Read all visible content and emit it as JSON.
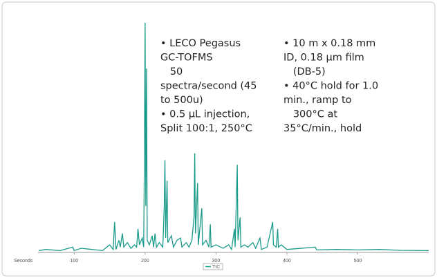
{
  "chart_data": {
    "type": "line",
    "xlabel": "Seconds",
    "xlim": [
      49,
      600
    ],
    "xticks": [
      100,
      200,
      300,
      400,
      500
    ],
    "ylim": [
      0,
      100
    ],
    "legend": "bottom",
    "x": [
      50,
      60,
      80,
      98,
      100,
      110,
      140,
      150,
      155,
      157,
      159,
      163,
      165,
      168,
      170,
      175,
      180,
      185,
      188,
      190,
      192,
      196,
      198,
      199,
      200,
      201,
      202,
      203,
      206,
      210,
      212,
      214,
      216,
      220,
      225,
      227,
      228,
      229,
      231,
      232,
      237,
      240,
      245,
      250,
      252,
      258,
      262,
      266,
      269,
      270,
      271,
      274,
      275,
      280,
      281,
      286,
      290,
      292,
      293,
      300,
      310,
      318,
      322,
      326,
      327,
      330,
      331,
      334,
      335,
      340,
      345,
      352,
      356,
      362,
      364,
      372,
      380,
      381,
      385,
      387,
      388,
      392,
      400,
      420,
      440,
      442,
      470,
      500,
      530,
      560,
      600
    ],
    "series": [
      {
        "name": "TIC",
        "color": "#1a9a8a",
        "values": [
          0.5,
          1,
          0.5,
          2,
          0.5,
          1.5,
          0.5,
          3,
          1,
          13,
          1,
          5,
          2,
          8,
          2,
          4,
          1.5,
          3,
          2,
          10,
          3,
          6,
          2,
          40,
          100,
          20,
          80,
          5,
          3,
          7,
          2,
          8,
          2,
          4,
          2,
          20,
          40,
          6,
          31,
          4,
          7,
          2,
          5,
          6,
          2,
          4,
          2,
          5,
          15,
          43,
          8,
          30,
          3,
          19,
          3,
          5,
          2,
          12,
          2,
          3,
          1.5,
          3,
          1,
          10,
          2,
          38,
          5,
          15,
          2,
          3,
          2,
          4,
          1.5,
          6,
          1,
          2,
          13,
          3,
          2,
          10,
          2,
          3,
          1,
          1.5,
          2,
          0.8,
          1,
          0.8,
          1,
          0.6,
          0.5
        ]
      }
    ],
    "annotations": [
      {
        "lines": [
          "• LECO Pegasus",
          "GC-TOFMS",
          "   50",
          "spectra/second (45",
          "to 500u)",
          "• 0.5 µL injection,",
          "Split 100:1, 250°C"
        ]
      },
      {
        "lines": [
          "• 10 m x 0.18 mm",
          "ID, 0.18 µm film",
          "   (DB-5)",
          "• 40°C hold for 1.0",
          "min., ramp to",
          "   300°C at",
          "35°C/min., hold"
        ]
      }
    ]
  }
}
